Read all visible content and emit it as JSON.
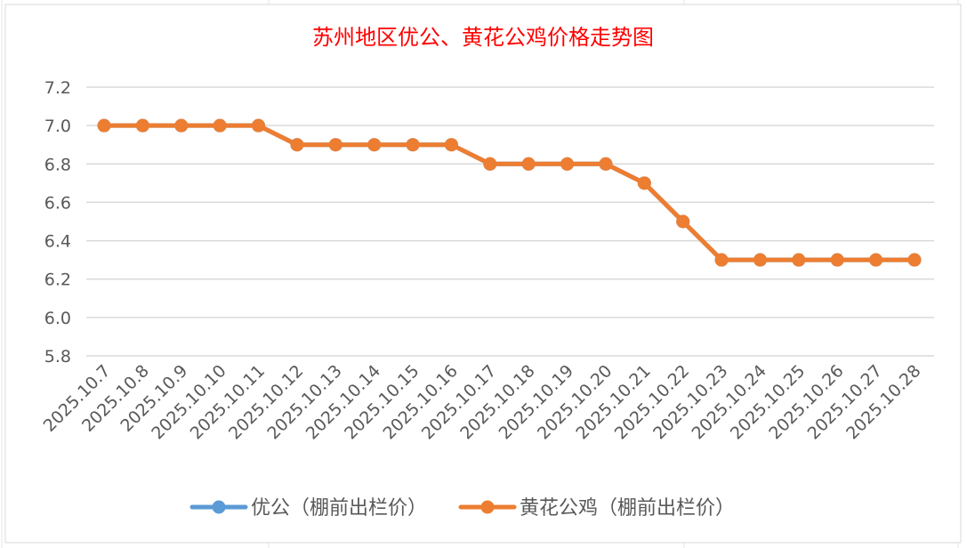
{
  "chart_data": {
    "type": "line",
    "title": "苏州地区优公、黄花公鸡价格走势图",
    "xlabel": "",
    "ylabel": "",
    "ylim": [
      5.8,
      7.2
    ],
    "yticks": [
      "5.8",
      "6.0",
      "6.2",
      "6.4",
      "6.6",
      "6.8",
      "7.0",
      "7.2"
    ],
    "grid": true,
    "legend_position": "bottom",
    "categories": [
      "2025.10.7",
      "2025.10.8",
      "2025.10.9",
      "2025.10.10",
      "2025.10.11",
      "2025.10.12",
      "2025.10.13",
      "2025.10.14",
      "2025.10.15",
      "2025.10.16",
      "2025.10.17",
      "2025.10.18",
      "2025.10.19",
      "2025.10.20",
      "2025.10.21",
      "2025.10.22",
      "2025.10.23",
      "2025.10.24",
      "2025.10.25",
      "2025.10.26",
      "2025.10.27",
      "2025.10.28"
    ],
    "series": [
      {
        "name": "优公（棚前出栏价）",
        "color": "#5b9bd5",
        "values": [
          7.0,
          7.0,
          7.0,
          7.0,
          7.0,
          6.9,
          6.9,
          6.9,
          6.9,
          6.9,
          6.8,
          6.8,
          6.8,
          6.8,
          6.7,
          6.5,
          6.3,
          6.3,
          6.3,
          6.3,
          6.3,
          6.3
        ]
      },
      {
        "name": "黄花公鸡（棚前出栏价）",
        "color": "#ed7d31",
        "values": [
          7.0,
          7.0,
          7.0,
          7.0,
          7.0,
          6.9,
          6.9,
          6.9,
          6.9,
          6.9,
          6.8,
          6.8,
          6.8,
          6.8,
          6.7,
          6.5,
          6.3,
          6.3,
          6.3,
          6.3,
          6.3,
          6.3
        ]
      }
    ],
    "title_color": "#ff0000"
  }
}
